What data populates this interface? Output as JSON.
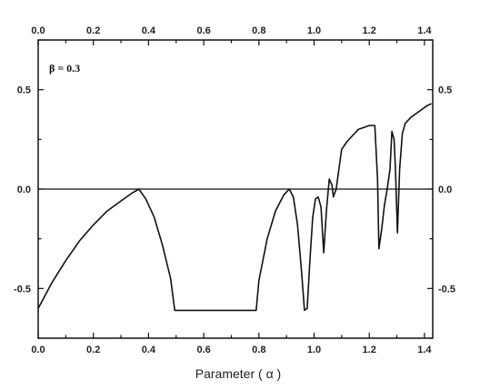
{
  "chart_data": {
    "type": "line",
    "title": "",
    "xlabel": "Parameter ( α )",
    "ylabel": "",
    "xlim": [
      0.0,
      1.43
    ],
    "ylim": [
      -0.75,
      0.75
    ],
    "grid": false,
    "annotation": "β = 0.3",
    "x_ticks": [
      0.0,
      0.2,
      0.4,
      0.6,
      0.8,
      1.0,
      1.2,
      1.4
    ],
    "x_tick_labels": [
      "0.0",
      "0.2",
      "0.4",
      "0.6",
      "0.8",
      "1.0",
      "1.2",
      "1.4"
    ],
    "y_ticks": [
      -0.5,
      0.0,
      0.5
    ],
    "y_tick_labels_left": [
      "-0.5",
      "0.0",
      "0.5"
    ],
    "y_tick_labels_right": [
      "-0.5",
      "0.0",
      "0.5"
    ],
    "reference_line": 0.0,
    "series": [
      {
        "values_xy": [
          [
            0.0,
            -0.6
          ],
          [
            0.05,
            -0.47
          ],
          [
            0.1,
            -0.36
          ],
          [
            0.15,
            -0.26
          ],
          [
            0.2,
            -0.18
          ],
          [
            0.25,
            -0.11
          ],
          [
            0.3,
            -0.06
          ],
          [
            0.34,
            -0.02
          ],
          [
            0.365,
            0.0
          ],
          [
            0.39,
            -0.05
          ],
          [
            0.42,
            -0.14
          ],
          [
            0.45,
            -0.28
          ],
          [
            0.48,
            -0.45
          ],
          [
            0.495,
            -0.61
          ],
          [
            0.6,
            -0.61
          ],
          [
            0.7,
            -0.61
          ],
          [
            0.79,
            -0.61
          ],
          [
            0.8,
            -0.46
          ],
          [
            0.83,
            -0.25
          ],
          [
            0.86,
            -0.11
          ],
          [
            0.89,
            -0.03
          ],
          [
            0.91,
            0.0
          ],
          [
            0.925,
            -0.04
          ],
          [
            0.94,
            -0.18
          ],
          [
            0.955,
            -0.42
          ],
          [
            0.965,
            -0.61
          ],
          [
            0.975,
            -0.6
          ],
          [
            0.985,
            -0.36
          ],
          [
            0.995,
            -0.14
          ],
          [
            1.005,
            -0.05
          ],
          [
            1.015,
            -0.04
          ],
          [
            1.025,
            -0.09
          ],
          [
            1.035,
            -0.32
          ],
          [
            1.045,
            -0.1
          ],
          [
            1.055,
            0.05
          ],
          [
            1.065,
            0.02
          ],
          [
            1.07,
            -0.04
          ],
          [
            1.08,
            0.0
          ],
          [
            1.09,
            0.1
          ],
          [
            1.1,
            0.2
          ],
          [
            1.12,
            0.24
          ],
          [
            1.14,
            0.27
          ],
          [
            1.16,
            0.3
          ],
          [
            1.18,
            0.31
          ],
          [
            1.2,
            0.32
          ],
          [
            1.22,
            0.32
          ],
          [
            1.23,
            0.05
          ],
          [
            1.235,
            -0.3
          ],
          [
            1.245,
            -0.2
          ],
          [
            1.255,
            -0.08
          ],
          [
            1.265,
            0.0
          ],
          [
            1.275,
            0.1
          ],
          [
            1.282,
            0.29
          ],
          [
            1.29,
            0.25
          ],
          [
            1.295,
            0.1
          ],
          [
            1.302,
            -0.22
          ],
          [
            1.31,
            0.1
          ],
          [
            1.32,
            0.28
          ],
          [
            1.33,
            0.33
          ],
          [
            1.35,
            0.36
          ],
          [
            1.37,
            0.38
          ],
          [
            1.39,
            0.4
          ],
          [
            1.41,
            0.42
          ],
          [
            1.425,
            0.43
          ]
        ],
        "color": "#111111"
      }
    ]
  }
}
